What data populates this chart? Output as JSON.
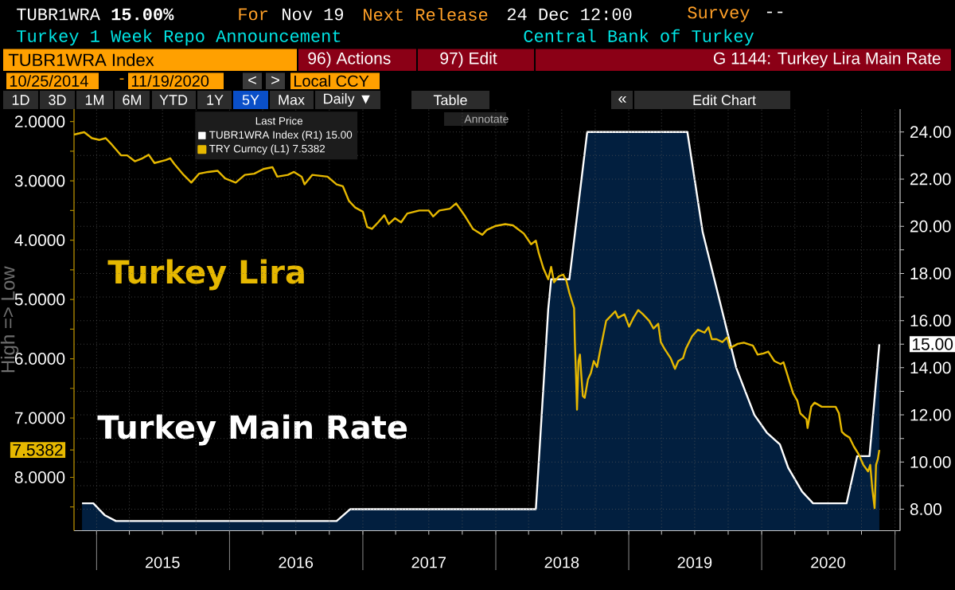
{
  "chart_data": {
    "type": "line",
    "title": "G 1144: Turkey Lira Main Rate",
    "subtitle": "Turkey 1 Week Repo Announcement",
    "ylabel": "High => Low",
    "legend_title": "Last Price",
    "annotations": [
      "TUBR1WRA **15.00%**",
      "For",
      "Nov 19",
      "Next Release",
      "24 Dec 12:00",
      "Survey",
      "--",
      "Central Bank of Turkey",
      "TUBR1WRA Index",
      "96) Actions",
      "97) Edit",
      "10/25/2014",
      "-",
      "11/19/2020",
      "<",
      ">",
      "Local CCY",
      "1D",
      "3D",
      "1M",
      "6M",
      "YTD",
      "1Y",
      "5Y",
      "Max",
      "Daily ▼",
      "Table",
      "«",
      "Edit Chart",
      "Annotate",
      "Turkey Lira",
      "Turkey Main Rate"
    ],
    "xlim": [
      "2014-10-31",
      "2021-01-15"
    ],
    "xticks": [
      {
        "value": "2015-01-01",
        "label": null
      },
      {
        "value": "2015-04-01",
        "label": null
      },
      {
        "value": "2015-07-01",
        "label": "2015"
      },
      {
        "value": "2015-10-01",
        "label": null
      },
      {
        "value": "2016-01-01",
        "label": null
      },
      {
        "value": "2016-04-01",
        "label": null
      },
      {
        "value": "2016-07-01",
        "label": "2016"
      },
      {
        "value": "2016-10-01",
        "label": null
      },
      {
        "value": "2017-01-01",
        "label": null
      },
      {
        "value": "2017-04-01",
        "label": null
      },
      {
        "value": "2017-07-01",
        "label": "2017"
      },
      {
        "value": "2017-10-01",
        "label": null
      },
      {
        "value": "2018-01-01",
        "label": null
      },
      {
        "value": "2018-04-01",
        "label": null
      },
      {
        "value": "2018-07-01",
        "label": "2018"
      },
      {
        "value": "2018-10-01",
        "label": null
      },
      {
        "value": "2019-01-01",
        "label": null
      },
      {
        "value": "2019-04-01",
        "label": null
      },
      {
        "value": "2019-07-01",
        "label": "2019"
      },
      {
        "value": "2019-10-01",
        "label": null
      },
      {
        "value": "2020-01-01",
        "label": null
      },
      {
        "value": "2020-04-01",
        "label": null
      },
      {
        "value": "2020-07-01",
        "label": "2020"
      },
      {
        "value": "2020-10-01",
        "label": null
      },
      {
        "value": "2021-01-01",
        "label": null
      }
    ],
    "ylim": [
      8.9,
      1.79
    ],
    "yticks": [
      {
        "value": 2,
        "label": "2.0000"
      },
      {
        "value": 3,
        "label": "3.0000"
      },
      {
        "value": 4,
        "label": "4.0000"
      },
      {
        "value": 5,
        "label": "5.0000"
      },
      {
        "value": 6,
        "label": "6.0000"
      },
      {
        "value": 7,
        "label": "7.0000"
      },
      {
        "value": 8,
        "label": "8.0000"
      },
      {
        "value": 7.5382,
        "label": "7.5382"
      },
      {
        "value": 2.5,
        "label": null
      },
      {
        "value": 3.5,
        "label": null
      },
      {
        "value": 4.5,
        "label": null
      },
      {
        "value": 5.5,
        "label": null
      },
      {
        "value": 6.5,
        "label": null
      },
      {
        "value": 8.5,
        "label": null
      }
    ],
    "y2lim": [
      7.09,
      24.97
    ],
    "y2ticks": [
      {
        "value": 8,
        "label": "8.00"
      },
      {
        "value": 9,
        "label": null
      },
      {
        "value": 10,
        "label": "10.00"
      },
      {
        "value": 11,
        "label": null
      },
      {
        "value": 12,
        "label": "12.00"
      },
      {
        "value": 13,
        "label": null
      },
      {
        "value": 14,
        "label": "14.00"
      },
      {
        "value": 15,
        "label": "15.00"
      },
      {
        "value": 16,
        "label": "16.00"
      },
      {
        "value": 17,
        "label": null
      },
      {
        "value": 18,
        "label": "18.00"
      },
      {
        "value": 19,
        "label": null
      },
      {
        "value": 20,
        "label": "20.00"
      },
      {
        "value": 21,
        "label": null
      },
      {
        "value": 22,
        "label": "22.00"
      },
      {
        "value": 23,
        "label": null
      },
      {
        "value": 24,
        "label": "24.00"
      }
    ],
    "grid": true,
    "legend": "top left",
    "series": [
      {
        "name": "TUBR1WRA Index (R1) 15.00",
        "type": "area",
        "axis": "y2",
        "color": "#ffffff",
        "x": [
          "2014-11-22",
          "2014-12-23",
          "2015-01-23",
          "2015-02-23",
          "2016-10-21",
          "2016-11-27",
          "2018-04-21",
          "2018-05-25",
          "2018-06-02",
          "2018-07-22",
          "2018-09-09",
          "2019-06-11",
          "2019-07-23",
          "2019-10-23",
          "2019-12-12",
          "2020-01-15",
          "2020-02-20",
          "2020-03-14",
          "2020-04-21",
          "2020-05-21",
          "2020-08-21",
          "2020-09-19",
          "2020-10-23",
          "2020-11-19"
        ],
        "values": [
          8.25,
          8.25,
          7.75,
          7.5,
          7.5,
          8,
          8,
          16.5,
          17.75,
          17.75,
          24,
          24,
          19.75,
          14,
          12,
          11.25,
          10.75,
          9.75,
          8.75,
          8.25,
          8.25,
          10.25,
          10.25,
          15
        ]
      },
      {
        "name": "TRY Curncy (L1) 7.5382",
        "color": "#e6b800",
        "x": [
          "2014-10-31",
          "2014-11-28",
          "2014-12-19",
          "2015-01-09",
          "2015-01-26",
          "2015-02-12",
          "2015-03-09",
          "2015-03-26",
          "2015-04-16",
          "2015-05-07",
          "2015-05-24",
          "2015-06-09",
          "2015-07-09",
          "2015-07-22",
          "2015-08-03",
          "2015-08-28",
          "2015-09-18",
          "2015-10-09",
          "2015-11-03",
          "2015-11-29",
          "2015-12-20",
          "2016-01-18",
          "2016-02-12",
          "2016-03-09",
          "2016-04-03",
          "2016-04-28",
          "2016-05-11",
          "2016-06-09",
          "2016-06-26",
          "2016-07-17",
          "2016-07-25",
          "2016-08-15",
          "2016-09-26",
          "2016-10-21",
          "2016-11-07",
          "2016-11-24",
          "2016-12-11",
          "2017-01-01",
          "2017-01-13",
          "2017-01-26",
          "2017-02-12",
          "2017-03-01",
          "2017-03-13",
          "2017-03-30",
          "2017-04-16",
          "2017-05-03",
          "2017-06-05",
          "2017-07-01",
          "2017-07-13",
          "2017-07-30",
          "2017-08-28",
          "2017-09-14",
          "2017-10-09",
          "2017-10-30",
          "2017-11-12",
          "2017-11-25",
          "2017-12-07",
          "2018-01-01",
          "2018-01-27",
          "2018-02-17",
          "2018-03-02",
          "2018-03-19",
          "2018-04-08",
          "2018-04-21",
          "2018-04-29",
          "2018-05-12",
          "2018-05-25",
          "2018-06-02",
          "2018-06-10",
          "2018-06-23",
          "2018-07-05",
          "2018-07-14",
          "2018-07-22",
          "2018-08-04",
          "2018-08-06",
          "2018-08-09",
          "2018-08-12",
          "2018-08-16",
          "2018-08-20",
          "2018-08-24",
          "2018-08-28",
          "2018-09-02",
          "2018-09-11",
          "2018-09-19",
          "2018-09-27",
          "2018-10-06",
          "2018-10-14",
          "2018-10-31",
          "2018-11-08",
          "2018-11-25",
          "2018-12-03",
          "2018-12-20",
          "2019-01-02",
          "2019-01-14",
          "2019-01-27",
          "2019-02-09",
          "2019-02-26",
          "2019-03-10",
          "2019-03-23",
          "2019-03-30",
          "2019-04-09",
          "2019-04-26",
          "2019-05-08",
          "2019-05-17",
          "2019-05-30",
          "2019-06-07",
          "2019-06-24",
          "2019-07-10",
          "2019-07-28",
          "2019-08-08",
          "2019-08-17",
          "2019-08-30",
          "2019-09-15",
          "2019-09-28",
          "2019-10-06",
          "2019-10-27",
          "2019-11-13",
          "2019-12-08",
          "2019-12-21",
          "2020-01-06",
          "2020-01-19",
          "2020-02-05",
          "2020-02-22",
          "2020-03-01",
          "2020-03-10",
          "2020-03-18",
          "2020-03-27",
          "2020-04-08",
          "2020-04-16",
          "2020-05-03",
          "2020-05-06",
          "2020-05-16",
          "2020-05-25",
          "2020-06-14",
          "2020-07-22",
          "2020-07-31",
          "2020-08-08",
          "2020-08-16",
          "2020-08-29",
          "2020-09-10",
          "2020-09-23",
          "2020-10-06",
          "2020-10-19",
          "2020-10-25",
          "2020-10-31",
          "2020-11-06",
          "2020-11-10",
          "2020-11-15",
          "2020-11-19"
        ],
        "values": [
          2.22,
          2.18,
          2.28,
          2.31,
          2.28,
          2.39,
          2.57,
          2.57,
          2.67,
          2.62,
          2.56,
          2.7,
          2.65,
          2.62,
          2.72,
          2.9,
          3.03,
          2.88,
          2.85,
          2.83,
          2.96,
          3.03,
          2.9,
          2.88,
          2.8,
          2.77,
          2.93,
          2.9,
          2.85,
          2.93,
          3.06,
          2.9,
          2.93,
          3.06,
          3.09,
          3.34,
          3.45,
          3.52,
          3.78,
          3.81,
          3.7,
          3.58,
          3.73,
          3.63,
          3.7,
          3.55,
          3.5,
          3.5,
          3.6,
          3.5,
          3.47,
          3.38,
          3.6,
          3.81,
          3.86,
          3.91,
          3.83,
          3.76,
          3.73,
          3.75,
          3.81,
          3.89,
          4.07,
          4.01,
          4.22,
          4.48,
          4.66,
          4.45,
          4.71,
          4.61,
          4.58,
          4.69,
          4.89,
          5.15,
          5.7,
          6.24,
          6.86,
          6.04,
          5.93,
          6.3,
          6.63,
          6.66,
          6.35,
          6.24,
          6.04,
          6.14,
          5.88,
          5.36,
          5.31,
          5.2,
          5.31,
          5.25,
          5.46,
          5.31,
          5.18,
          5.25,
          5.36,
          5.49,
          5.41,
          5.72,
          5.83,
          5.99,
          6.17,
          6.04,
          5.99,
          5.83,
          5.62,
          5.51,
          5.56,
          5.47,
          5.67,
          5.67,
          5.72,
          5.64,
          5.82,
          5.75,
          5.73,
          5.78,
          5.93,
          5.91,
          5.88,
          6.04,
          6.09,
          6.06,
          6.24,
          6.4,
          6.58,
          6.71,
          6.92,
          7.02,
          7.17,
          6.81,
          6.74,
          6.81,
          6.81,
          6.92,
          7.23,
          7.28,
          7.33,
          7.48,
          7.61,
          7.79,
          7.9,
          7.79,
          8.21,
          8.52,
          7.79,
          7.69,
          7.5382
        ]
      }
    ]
  }
}
